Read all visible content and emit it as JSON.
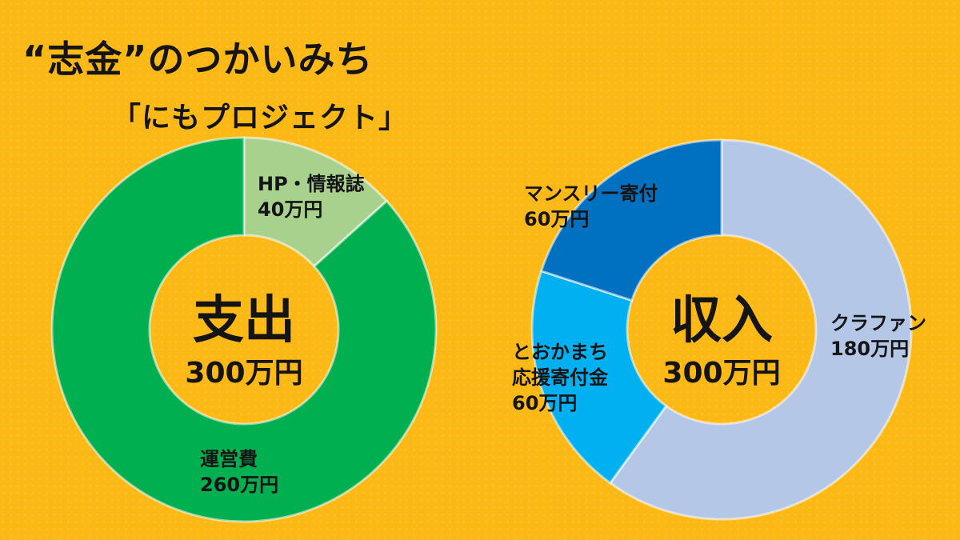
{
  "title": "“志金”のつかいみち",
  "subtitle": "「にもプロジェクト」",
  "chart_data": [
    {
      "type": "pie",
      "center_label": "支出",
      "center_value": "300万円",
      "unit": "万円",
      "slices": [
        {
          "label": "HP・情報誌",
          "value_text": "40万円",
          "value": 40,
          "color": "#a9d18e"
        },
        {
          "label": "運営費",
          "value_text": "260万円",
          "value": 260,
          "color": "#00b050"
        }
      ]
    },
    {
      "type": "pie",
      "center_label": "収入",
      "center_value": "300万円",
      "unit": "万円",
      "slices": [
        {
          "label": "クラファン",
          "value_text": "180万円",
          "value": 180,
          "color": "#b4c7e7"
        },
        {
          "label": "とおかまち\n応援寄付金",
          "value_text": "60万円",
          "value": 60,
          "color": "#00b0f0"
        },
        {
          "label": "マンスリー寄付",
          "value_text": "60万円",
          "value": 60,
          "color": "#0070c0"
        }
      ]
    }
  ]
}
